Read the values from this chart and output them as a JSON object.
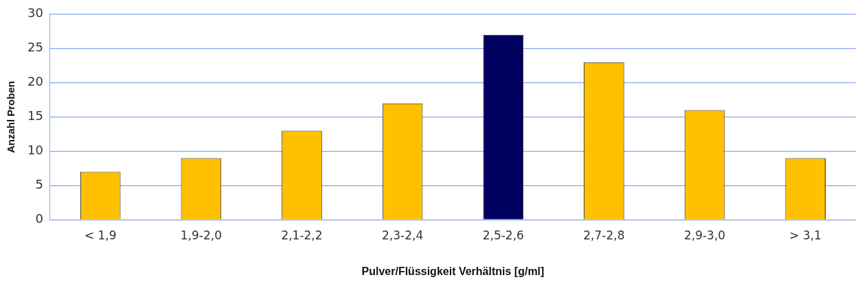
{
  "chart_data": {
    "type": "bar",
    "xlabel": "Pulver/Flüssigkeit Verhältnis [g/ml]",
    "ylabel": "Anzahl Proben",
    "categories": [
      "< 1,9",
      "1,9-2,0",
      "2,1-2,2",
      "2,3-2,4",
      "2,5-2,6",
      "2,7-2,8",
      "2,9-3,0",
      "> 3,1"
    ],
    "values": [
      7,
      9,
      13,
      17,
      27,
      23,
      16,
      9
    ],
    "colors": [
      "#ffc000",
      "#ffc000",
      "#ffc000",
      "#ffc000",
      "#000060",
      "#ffc000",
      "#ffc000",
      "#ffc000"
    ],
    "ylim": [
      0,
      30
    ],
    "yticks": [
      0,
      5,
      10,
      15,
      20,
      25,
      30
    ],
    "grid": "y",
    "legend": false
  }
}
